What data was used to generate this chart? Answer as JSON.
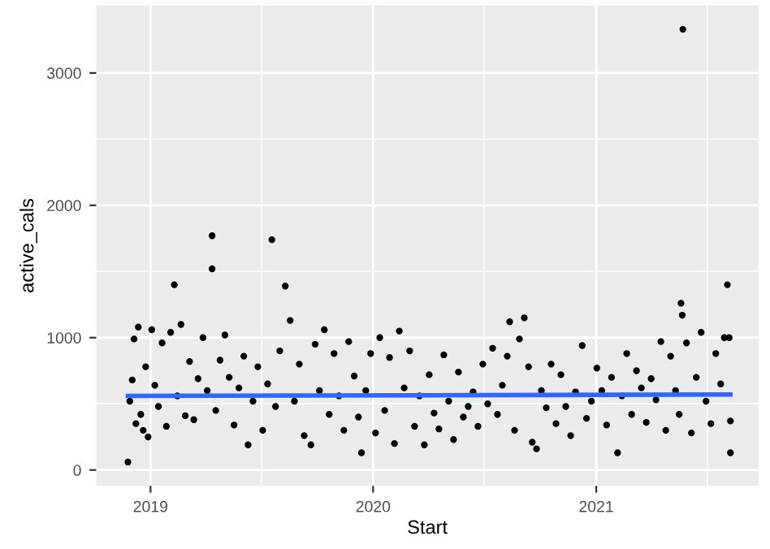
{
  "chart_data": {
    "type": "scatter",
    "xlabel": "Start",
    "ylabel": "active_cals",
    "xlim": [
      "2018-10-04",
      "2021-09-24"
    ],
    "ylim": [
      -120,
      3510
    ],
    "xticks": [
      {
        "value": "2019-01-01",
        "label": "2019"
      },
      {
        "value": "2019-07-02",
        "label": null
      },
      {
        "value": "2020-01-01",
        "label": "2020"
      },
      {
        "value": "2020-07-01",
        "label": null
      },
      {
        "value": "2021-01-01",
        "label": "2021"
      },
      {
        "value": "2021-07-02",
        "label": null
      }
    ],
    "yticks": [
      0,
      {
        "value": 500,
        "label": null
      },
      1000,
      {
        "value": 1500,
        "label": null
      },
      2000,
      {
        "value": 2500,
        "label": null
      },
      3000
    ],
    "grid": true,
    "series": [
      {
        "marker": "circle",
        "color": "#000000",
        "x": [
          "2018-11-25",
          "2018-11-28",
          "2018-12-02",
          "2018-12-05",
          "2018-12-08",
          "2018-12-12",
          "2018-12-16",
          "2018-12-20",
          "2018-12-24",
          "2018-12-28",
          "2019-01-03",
          "2019-01-08",
          "2019-01-14",
          "2019-01-20",
          "2019-01-27",
          "2019-02-03",
          "2019-02-09",
          "2019-02-14",
          "2019-02-20",
          "2019-02-27",
          "2019-03-06",
          "2019-03-13",
          "2019-03-20",
          "2019-03-28",
          "2019-04-04",
          "2019-04-12",
          "2019-04-12",
          "2019-04-18",
          "2019-04-25",
          "2019-05-03",
          "2019-05-10",
          "2019-05-18",
          "2019-05-26",
          "2019-06-03",
          "2019-06-10",
          "2019-06-18",
          "2019-06-26",
          "2019-07-04",
          "2019-07-12",
          "2019-07-19",
          "2019-07-25",
          "2019-08-01",
          "2019-08-10",
          "2019-08-18",
          "2019-08-25",
          "2019-09-02",
          "2019-09-10",
          "2019-09-21",
          "2019-09-28",
          "2019-10-05",
          "2019-10-13",
          "2019-10-21",
          "2019-10-29",
          "2019-11-06",
          "2019-11-14",
          "2019-11-22",
          "2019-12-01",
          "2019-12-08",
          "2019-12-13",
          "2019-12-20",
          "2019-12-28",
          "2020-01-05",
          "2020-01-12",
          "2020-01-20",
          "2020-01-28",
          "2020-02-05",
          "2020-02-13",
          "2020-02-21",
          "2020-03-01",
          "2020-03-09",
          "2020-03-17",
          "2020-03-25",
          "2020-04-02",
          "2020-04-10",
          "2020-04-18",
          "2020-04-26",
          "2020-05-04",
          "2020-05-12",
          "2020-05-20",
          "2020-05-28",
          "2020-06-05",
          "2020-06-13",
          "2020-06-21",
          "2020-06-29",
          "2020-07-07",
          "2020-07-15",
          "2020-07-23",
          "2020-07-31",
          "2020-08-08",
          "2020-08-12",
          "2020-08-20",
          "2020-08-28",
          "2020-09-05",
          "2020-09-12",
          "2020-09-18",
          "2020-09-25",
          "2020-10-03",
          "2020-10-11",
          "2020-10-19",
          "2020-10-27",
          "2020-11-04",
          "2020-11-12",
          "2020-11-20",
          "2020-11-28",
          "2020-12-09",
          "2020-12-16",
          "2020-12-24",
          "2021-01-02",
          "2021-01-10",
          "2021-01-18",
          "2021-01-26",
          "2021-02-05",
          "2021-02-12",
          "2021-02-20",
          "2021-02-28",
          "2021-03-08",
          "2021-03-16",
          "2021-03-24",
          "2021-04-01",
          "2021-04-09",
          "2021-04-17",
          "2021-04-25",
          "2021-05-03",
          "2021-05-11",
          "2021-05-17",
          "2021-05-20",
          "2021-05-22",
          "2021-05-23",
          "2021-05-29",
          "2021-06-06",
          "2021-06-14",
          "2021-06-22",
          "2021-06-30",
          "2021-07-08",
          "2021-07-16",
          "2021-07-24",
          "2021-07-30",
          "2021-08-04",
          "2021-08-07",
          "2021-08-09",
          "2021-08-09"
        ],
        "values": [
          60,
          520,
          680,
          990,
          350,
          1080,
          420,
          300,
          780,
          250,
          1060,
          640,
          480,
          960,
          330,
          1040,
          1400,
          560,
          1100,
          410,
          820,
          380,
          690,
          1000,
          600,
          1770,
          1520,
          450,
          830,
          1020,
          700,
          340,
          620,
          860,
          190,
          520,
          780,
          300,
          650,
          1740,
          480,
          900,
          1390,
          1130,
          520,
          800,
          260,
          190,
          950,
          600,
          1060,
          420,
          880,
          560,
          300,
          970,
          710,
          400,
          130,
          600,
          880,
          280,
          1000,
          450,
          850,
          200,
          1050,
          620,
          900,
          330,
          560,
          190,
          720,
          430,
          310,
          870,
          520,
          230,
          740,
          400,
          480,
          590,
          330,
          800,
          500,
          920,
          420,
          640,
          860,
          1120,
          300,
          990,
          1150,
          780,
          210,
          160,
          600,
          470,
          800,
          350,
          720,
          480,
          260,
          590,
          940,
          390,
          520,
          770,
          600,
          340,
          700,
          130,
          560,
          880,
          420,
          750,
          620,
          360,
          690,
          530,
          970,
          300,
          860,
          600,
          420,
          1260,
          1170,
          3330,
          960,
          280,
          700,
          1040,
          520,
          350,
          880,
          650,
          1000,
          1400,
          1000,
          370,
          130
        ]
      },
      {
        "type": "line",
        "marker": "none",
        "color": "#3366ff",
        "x": [
          "2018-11-25",
          "2021-08-09"
        ],
        "values": [
          560,
          570
        ]
      }
    ]
  }
}
